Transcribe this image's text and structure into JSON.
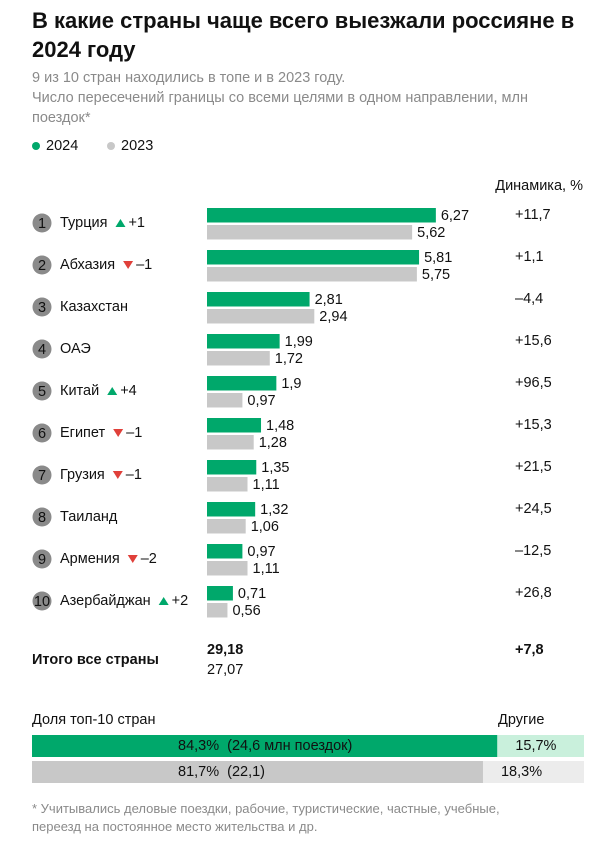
{
  "title": "В какие страны чаще всего выезжали россияне в 2024 году",
  "subtitle_lines": [
    "9 из 10 стран находились в топе и в 2023 году.",
    "Число пересечений границы со всеми целями в одном направлении, млн поездок*"
  ],
  "chart_data": {
    "type": "bar",
    "orientation": "horizontal",
    "categories": [
      "Турция",
      "Абхазия",
      "Казахстан",
      "ОАЭ",
      "Китай",
      "Египет",
      "Грузия",
      "Таиланд",
      "Армения",
      "Азербайджан"
    ],
    "ranks": [
      1,
      2,
      3,
      4,
      5,
      6,
      7,
      8,
      9,
      10
    ],
    "rank_changes": {
      "values": [
        1,
        -1,
        null,
        null,
        4,
        -1,
        -1,
        null,
        -2,
        2
      ],
      "value_labels": [
        "+1",
        "–1",
        null,
        null,
        "+4",
        "–1",
        "–1",
        null,
        "–2",
        "+2"
      ]
    },
    "series": [
      {
        "name": "2024",
        "color": "#00a86b",
        "values": [
          6.27,
          5.81,
          2.81,
          1.99,
          1.9,
          1.48,
          1.35,
          1.32,
          0.97,
          0.71
        ],
        "value_labels": [
          "6,27",
          "5,81",
          "2,81",
          "1,99",
          "1,9",
          "1,48",
          "1,35",
          "1,32",
          "0,97",
          "0,71"
        ]
      },
      {
        "name": "2023",
        "color": "#c8c8c8",
        "values": [
          5.62,
          5.75,
          2.94,
          1.72,
          0.97,
          1.28,
          1.11,
          1.06,
          1.11,
          0.56
        ],
        "value_labels": [
          "5,62",
          "5,75",
          "2,94",
          "1,72",
          "0,97",
          "1,28",
          "1,11",
          "1,06",
          "1,11",
          "0,56"
        ]
      }
    ],
    "dynamics": {
      "title": "Динамика, %",
      "values": [
        11.7,
        1.1,
        -4.4,
        15.6,
        96.5,
        15.3,
        21.5,
        24.5,
        -12.5,
        26.8
      ],
      "value_labels": [
        "+11,7",
        "+1,1",
        "–4,4",
        "+15,6",
        "+96,5",
        "+15,3",
        "+21,5",
        "+24,5",
        "–12,5",
        "+26,8"
      ]
    },
    "total": {
      "label": "Итого все страны",
      "values": [
        29.18,
        27.07
      ],
      "value_labels": [
        "29,18",
        "27,07"
      ],
      "dynamic": 7.8,
      "dynamic_label": "+7,8"
    },
    "share": {
      "title": "Доля топ-10 стран",
      "other_title": "Другие",
      "rows": [
        {
          "top": 84.3,
          "top_label": "84,3%",
          "note": "(24,6 млн поездок)",
          "other": 15.7,
          "other_label": "15,7%"
        },
        {
          "top": 81.7,
          "top_label": "81,7%",
          "note": "(22,1)",
          "other": 18.3,
          "other_label": "18,3%"
        }
      ]
    }
  },
  "footnote": "* Учитывались деловые поездки, рабочие, туристические, частные, учебные, переезд на постоянное место жительства и др."
}
